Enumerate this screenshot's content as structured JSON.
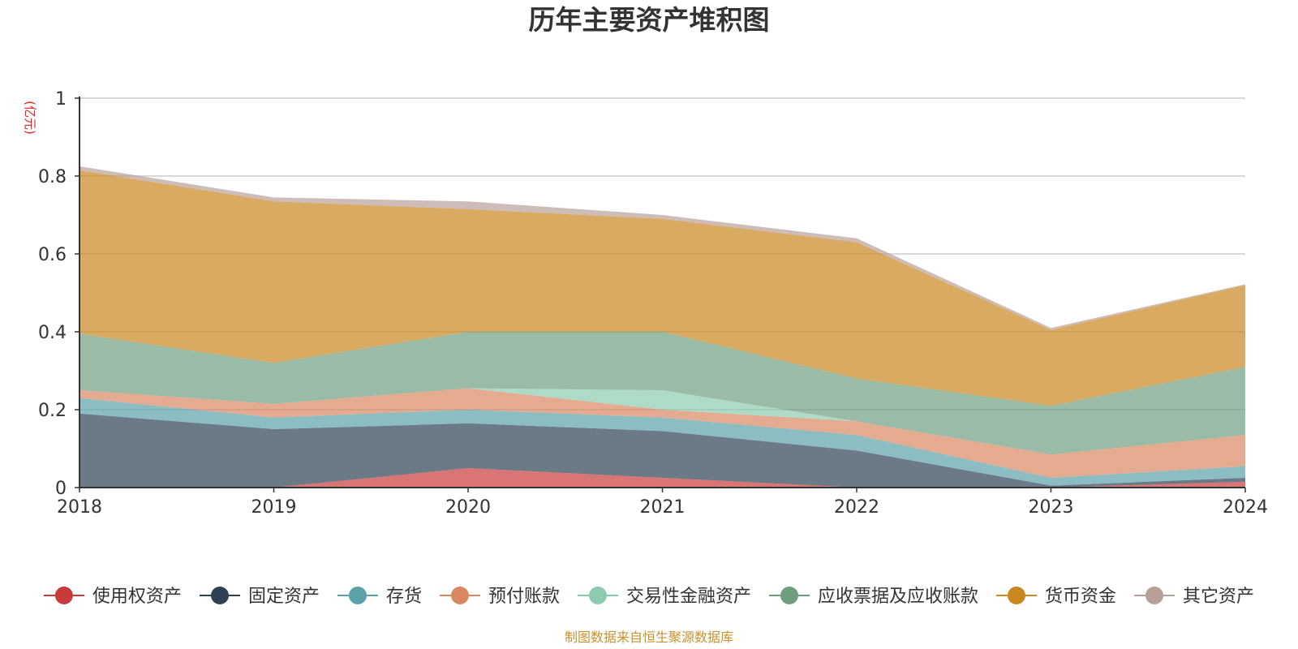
{
  "chart_data": {
    "type": "area",
    "stacked": true,
    "title": "历年主要资产堆积图",
    "unit": "(亿元)",
    "xlabel": "",
    "ylabel": "",
    "categories": [
      "2018",
      "2019",
      "2020",
      "2021",
      "2022",
      "2023",
      "2024"
    ],
    "ylim": [
      0,
      1
    ],
    "yticks": [
      "0",
      "0.2",
      "0.4",
      "0.6",
      "0.8",
      "1"
    ],
    "grid": true,
    "legend_position": "bottom",
    "series": [
      {
        "name": "使用权资产",
        "color": "#c93a3a",
        "values": [
          0,
          0,
          0.05,
          0.025,
          0,
          0,
          0.015
        ]
      },
      {
        "name": "固定资产",
        "color": "#2e4052",
        "values": [
          0.19,
          0.15,
          0.115,
          0.12,
          0.095,
          0.005,
          0.01
        ]
      },
      {
        "name": "存货",
        "color": "#5ba1aa",
        "values": [
          0.04,
          0.03,
          0.035,
          0.035,
          0.04,
          0.02,
          0.03
        ]
      },
      {
        "name": "预付账款",
        "color": "#d98763",
        "values": [
          0.02,
          0.035,
          0.055,
          0.02,
          0.035,
          0.06,
          0.08
        ]
      },
      {
        "name": "交易性金融资产",
        "color": "#8ccbb0",
        "values": [
          0,
          0,
          0,
          0.05,
          0,
          0,
          0
        ]
      },
      {
        "name": "应收票据及应收账款",
        "color": "#6f9e7f",
        "values": [
          0.145,
          0.105,
          0.145,
          0.15,
          0.11,
          0.125,
          0.175
        ]
      },
      {
        "name": "货币资金",
        "color": "#c98820",
        "values": [
          0.42,
          0.415,
          0.315,
          0.29,
          0.35,
          0.195,
          0.21
        ]
      },
      {
        "name": "其它资产",
        "color": "#b8a09a",
        "values": [
          0.01,
          0.01,
          0.02,
          0.01,
          0.01,
          0.005,
          0.002
        ]
      }
    ]
  },
  "footer": {
    "source": "制图数据来自恒生聚源数据库"
  }
}
